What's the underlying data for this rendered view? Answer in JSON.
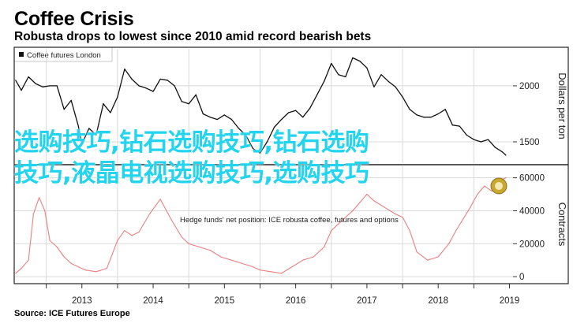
{
  "header": {
    "title": "Coffee Crisis",
    "subtitle": "Robusta drops to lowest since 2010 amid record bearish bets"
  },
  "legend": {
    "label": "Coffee futures London",
    "label2": "Hedge funds' net position: ICE robusta coffee, futures and options"
  },
  "source": "Source: ICE Futures Europe",
  "overlay": {
    "line1": "选购技巧,钻石选购技巧,钻石选购",
    "line2": "技巧,液晶电视选购技巧,选购技巧"
  },
  "colors": {
    "price_line": "#111111",
    "position_line": "#e88080",
    "grid": "#d9d9d9",
    "overlay_text": "#23d4ee",
    "badge": "#c8a830"
  },
  "chart_data": [
    {
      "type": "line",
      "title": "Coffee futures London",
      "ylabel": "Dollars per ton",
      "ylim": [
        1310,
        2330
      ],
      "yticks": [
        1500,
        2000
      ],
      "x_ticklabels": [
        "2013",
        "2014",
        "2015",
        "2016",
        "2017",
        "2018",
        "2019"
      ],
      "xlim": [
        2012.55,
        2019.55
      ],
      "series": [
        {
          "name": "Coffee futures London",
          "x": [
            2012.57,
            2012.65,
            2012.75,
            2012.85,
            2012.95,
            2013.05,
            2013.15,
            2013.25,
            2013.35,
            2013.45,
            2013.5,
            2013.6,
            2013.7,
            2013.8,
            2013.9,
            2014.0,
            2014.1,
            2014.2,
            2014.3,
            2014.4,
            2014.5,
            2014.6,
            2014.7,
            2014.8,
            2014.9,
            2015.0,
            2015.1,
            2015.2,
            2015.3,
            2015.4,
            2015.5,
            2015.6,
            2015.7,
            2015.8,
            2015.9,
            2016.0,
            2016.1,
            2016.2,
            2016.3,
            2016.4,
            2016.5,
            2016.6,
            2016.7,
            2016.8,
            2016.9,
            2017.0,
            2017.1,
            2017.2,
            2017.3,
            2017.4,
            2017.5,
            2017.6,
            2017.7,
            2017.8,
            2017.9,
            2018.0,
            2018.1,
            2018.2,
            2018.3,
            2018.4,
            2018.5,
            2018.6,
            2018.7,
            2018.8,
            2018.9,
            2019.0,
            2019.1,
            2019.2,
            2019.3,
            2019.4,
            2019.45
          ],
          "y": [
            2050,
            1960,
            2080,
            2020,
            1990,
            2000,
            2000,
            1790,
            1870,
            1640,
            1480,
            1620,
            1560,
            1840,
            1760,
            1900,
            2150,
            2060,
            2000,
            1980,
            1950,
            2060,
            2050,
            2000,
            1860,
            1840,
            1920,
            1750,
            1720,
            1700,
            1740,
            1700,
            1620,
            1560,
            1440,
            1400,
            1500,
            1630,
            1700,
            1760,
            1780,
            1720,
            1800,
            1920,
            2040,
            2200,
            2100,
            2080,
            2250,
            2220,
            2160,
            1990,
            2100,
            2040,
            1990,
            1900,
            1790,
            1740,
            1720,
            1720,
            1750,
            1790,
            1650,
            1640,
            1560,
            1520,
            1500,
            1520,
            1450,
            1410,
            1380
          ]
        }
      ]
    },
    {
      "type": "line",
      "title": "",
      "ylabel": "Contracts",
      "ylim": [
        -3300,
        67000
      ],
      "yticks": [
        0,
        20000,
        40000,
        60000
      ],
      "x_ticklabels": [
        "2013",
        "2014",
        "2015",
        "2016",
        "2017",
        "2018",
        "2019"
      ],
      "xlim": [
        2012.55,
        2019.55
      ],
      "series": [
        {
          "name": "Hedge funds' net position",
          "x": [
            2012.57,
            2012.65,
            2012.75,
            2012.82,
            2012.9,
            2012.98,
            2013.05,
            2013.15,
            2013.25,
            2013.35,
            2013.45,
            2013.55,
            2013.7,
            2013.85,
            2014.0,
            2014.1,
            2014.2,
            2014.3,
            2014.45,
            2014.6,
            2014.75,
            2014.9,
            2015.0,
            2015.15,
            2015.3,
            2015.45,
            2015.6,
            2015.75,
            2015.9,
            2016.0,
            2016.15,
            2016.3,
            2016.45,
            2016.6,
            2016.75,
            2016.9,
            2017.0,
            2017.1,
            2017.2,
            2017.3,
            2017.4,
            2017.5,
            2017.6,
            2017.75,
            2017.9,
            2018.0,
            2018.1,
            2018.2,
            2018.35,
            2018.5,
            2018.65,
            2018.75,
            2018.85,
            2018.95,
            2019.05,
            2019.15,
            2019.25,
            2019.35,
            2019.45
          ],
          "y": [
            2000,
            5000,
            10000,
            38000,
            48000,
            40000,
            22000,
            18000,
            12000,
            8000,
            6000,
            4000,
            3000,
            5000,
            22000,
            28000,
            25000,
            27000,
            38000,
            47000,
            35000,
            24000,
            20000,
            18000,
            16000,
            12000,
            10000,
            8000,
            6000,
            4000,
            3000,
            2000,
            6000,
            10000,
            12000,
            18000,
            28000,
            32000,
            36000,
            40000,
            45000,
            50000,
            46000,
            42000,
            38000,
            36000,
            28000,
            15000,
            10000,
            12000,
            20000,
            28000,
            35000,
            42000,
            50000,
            55000,
            52000,
            58000,
            60000
          ]
        }
      ]
    }
  ]
}
